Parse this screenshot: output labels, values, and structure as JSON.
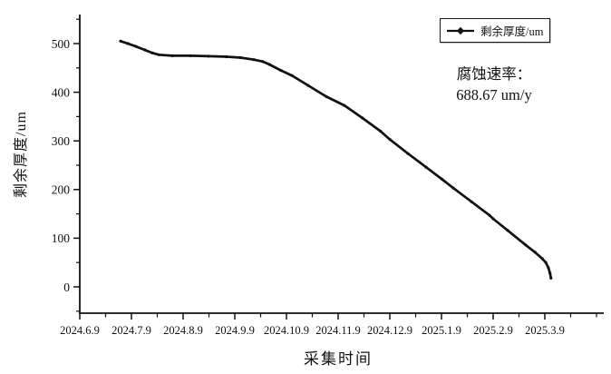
{
  "figure": {
    "background": "#ffffff",
    "line_color": "#111111"
  },
  "legend": {
    "label": "剩余厚度/um",
    "symbol": "line-with-plus-marker",
    "position": "top-right"
  },
  "annotation": {
    "line1": "腐蚀速率：",
    "line2": "688.67 um/y"
  },
  "chart_data": {
    "type": "line",
    "title": "",
    "xlabel": "采集时间",
    "ylabel": "剩余厚度/um",
    "x_tick_labels": [
      "2024.6.9",
      "2024.7.9",
      "2024.8.9",
      "2024.9.9",
      "2024.10.9",
      "2024.11.9",
      "2024.12.9",
      "2025.1.9",
      "2025.2.9",
      "2025.3.9"
    ],
    "x_unit_note": "series x = months offset from the 2024.6.9 tick (1 unit = 1 month interval)",
    "y_ticks": [
      0,
      100,
      200,
      300,
      400,
      500
    ],
    "ylim": [
      -55,
      560
    ],
    "xlim": [
      0,
      10.15
    ],
    "grid": false,
    "legend_position": "top-right",
    "annotation_text": "腐蚀速率： 688.67 um/y",
    "series": [
      {
        "name": "剩余厚度/um",
        "color": "#111111",
        "marker": "dense-small-dots",
        "points": [
          [
            0.79,
            505
          ],
          [
            0.93,
            500
          ],
          [
            1.09,
            494
          ],
          [
            1.26,
            487
          ],
          [
            1.4,
            481
          ],
          [
            1.53,
            477
          ],
          [
            1.79,
            475
          ],
          [
            2.14,
            475
          ],
          [
            2.49,
            474
          ],
          [
            2.84,
            473
          ],
          [
            3.11,
            471
          ],
          [
            3.37,
            467
          ],
          [
            3.54,
            463
          ],
          [
            3.67,
            457
          ],
          [
            3.89,
            445
          ],
          [
            4.11,
            434
          ],
          [
            4.42,
            414
          ],
          [
            4.77,
            391
          ],
          [
            5.12,
            373
          ],
          [
            5.47,
            347
          ],
          [
            5.82,
            320
          ],
          [
            6.0,
            303
          ],
          [
            6.35,
            274
          ],
          [
            6.7,
            246
          ],
          [
            7.0,
            222
          ],
          [
            7.23,
            203
          ],
          [
            7.58,
            175
          ],
          [
            7.93,
            147
          ],
          [
            8.0,
            140
          ],
          [
            8.28,
            116
          ],
          [
            8.63,
            86
          ],
          [
            8.81,
            71
          ],
          [
            8.95,
            58
          ],
          [
            9.02,
            50
          ],
          [
            9.07,
            39
          ],
          [
            9.1,
            28
          ],
          [
            9.12,
            18
          ]
        ]
      }
    ]
  }
}
